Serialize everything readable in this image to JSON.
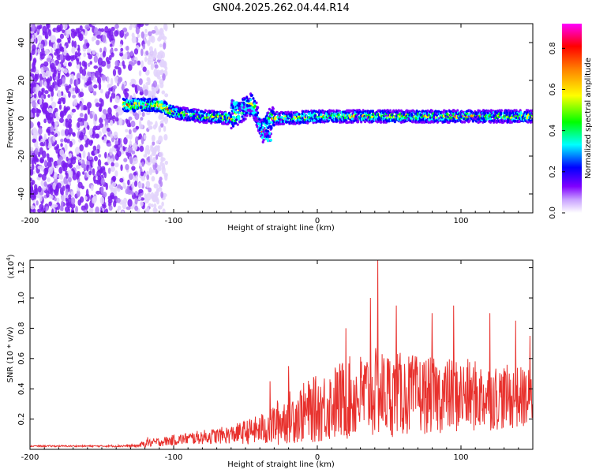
{
  "title": "GN04.2025.262.04.44.R14",
  "chart_data": [
    {
      "type": "heatmap",
      "title": "GN04.2025.262.04.44.R14",
      "xlabel": "Height of straight line (km)",
      "ylabel": "Frequency (Hz)",
      "xlim": [
        -200,
        150
      ],
      "ylim": [
        -50,
        50
      ],
      "x_ticks": [
        -200,
        -100,
        0,
        100
      ],
      "x_tick_labels": [
        "-200",
        "-100",
        "0",
        "100"
      ],
      "y_ticks": [
        -40,
        -20,
        0,
        20,
        40
      ],
      "y_tick_labels": [
        "-40",
        "-20",
        "0",
        "20",
        "40"
      ],
      "colorbar": {
        "label": "Normalized spectral amplitude",
        "range": [
          0.0,
          0.92
        ],
        "ticks": [
          0.0,
          0.2,
          0.4,
          0.6,
          0.8
        ],
        "tick_labels": [
          "0.0",
          "0.2",
          "0.4",
          "0.6",
          "0.8"
        ],
        "colors": [
          "#ffffff",
          "#8000ff",
          "#0000ff",
          "#00ffff",
          "#00ff00",
          "#ffff00",
          "#ff8000",
          "#ff0000",
          "#ff00ff"
        ]
      },
      "ridge": {
        "description_points_x": [
          -200,
          -150,
          -135,
          -110,
          -100,
          -80,
          -60,
          -45,
          -38,
          -33,
          -20,
          0,
          50,
          100,
          150
        ],
        "description_points_freq": [
          0,
          0,
          7,
          7,
          3,
          1,
          0,
          8,
          -7,
          0,
          0,
          1,
          1,
          1,
          1
        ]
      }
    },
    {
      "type": "line",
      "xlabel": "Height of straight line (km)",
      "ylabel": "SNR (10 * v/v)",
      "y_scale_label": "(x10",
      "y_scale_exponent": "4",
      "xlim": [
        -200,
        150
      ],
      "ylim": [
        0,
        1.25
      ],
      "x_ticks": [
        -200,
        -100,
        0,
        100
      ],
      "x_tick_labels": [
        "-200",
        "-100",
        "0",
        "100"
      ],
      "y_ticks": [
        0.2,
        0.4,
        0.6,
        0.8,
        1.0,
        1.2
      ],
      "y_tick_labels": [
        "0.2",
        "0.4",
        "0.6",
        "0.8",
        "1.0",
        "1.2"
      ],
      "series": [
        {
          "name": "SNR",
          "color": "#e8312d",
          "envelope": {
            "x": [
              -200,
              -150,
              -125,
              -120,
              -110,
              -90,
              -60,
              -40,
              -30,
              -20,
              0,
              20,
              40,
              60,
              80,
              100,
              120,
              150
            ],
            "baseline": [
              0.02,
              0.02,
              0.02,
              0.03,
              0.04,
              0.06,
              0.08,
              0.1,
              0.12,
              0.16,
              0.2,
              0.25,
              0.28,
              0.28,
              0.28,
              0.28,
              0.28,
              0.28
            ],
            "amplitude": [
              0.01,
              0.01,
              0.02,
              0.05,
              0.06,
              0.08,
              0.12,
              0.2,
              0.3,
              0.35,
              0.45,
              0.55,
              0.6,
              0.55,
              0.5,
              0.5,
              0.45,
              0.4
            ]
          },
          "peaks": [
            [
              -118,
              0.08
            ],
            [
              -33,
              0.45
            ],
            [
              -20,
              0.55
            ],
            [
              20,
              0.8
            ],
            [
              37,
              1.0
            ],
            [
              42,
              1.25
            ],
            [
              55,
              0.95
            ],
            [
              80,
              0.9
            ],
            [
              95,
              0.95
            ],
            [
              120,
              0.9
            ],
            [
              138,
              0.85
            ],
            [
              148,
              0.75
            ]
          ]
        }
      ]
    }
  ]
}
